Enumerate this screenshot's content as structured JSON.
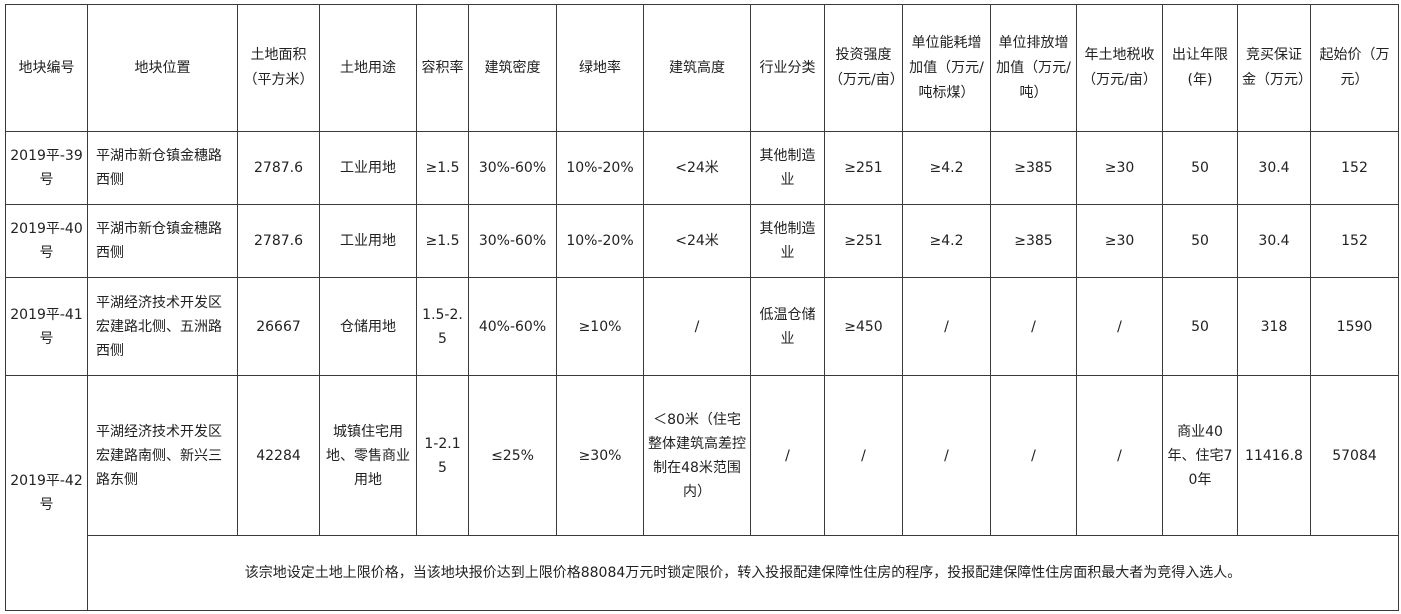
{
  "headers": [
    "地块编号",
    "地块位置",
    "土地面积（平方米）",
    "土地用途",
    "容积率",
    "建筑密度",
    "绿地率",
    "建筑高度",
    "行业分类",
    "投资强度（万元/亩）",
    "单位能耗增加值（万元/吨标煤）",
    "单位排放增加值（万元/吨）",
    "年土地税收（万元/亩）",
    "出让年限(年)",
    "竞买保证金（万元）",
    "起始价（万元）"
  ],
  "rows": [
    [
      "2019平-39号",
      "平湖市新仓镇金穗路西侧",
      "2787.6",
      "工业用地",
      "≥1.5",
      "30%-60%",
      "10%-20%",
      "<24米",
      "其他制造业",
      "≥251",
      "≥4.2",
      "≥385",
      "≥30",
      "50",
      "30.4",
      "152"
    ],
    [
      "2019平-40号",
      "平湖市新仓镇金穗路西侧",
      "2787.6",
      "工业用地",
      "≥1.5",
      "30%-60%",
      "10%-20%",
      "<24米",
      "其他制造业",
      "≥251",
      "≥4.2",
      "≥385",
      "≥30",
      "50",
      "30.4",
      "152"
    ],
    [
      "2019平-41号",
      "平湖经济技术开发区宏建路北侧、五洲路西侧",
      "26667",
      "仓储用地",
      "1.5-2.5",
      "40%-60%",
      "≥10%",
      "/",
      "低温仓储业",
      "≥450",
      "/",
      "/",
      "/",
      "50",
      "318",
      "1590"
    ],
    [
      "2019平-42号",
      "平湖经济技术开发区宏建路南侧、新兴三路东侧",
      "42284",
      "城镇住宅用地、零售商业用地",
      "1-2.15",
      "≤25%",
      "≥30%",
      "＜80米（住宅整体建筑高差控制在48米范围内）",
      "/",
      "/",
      "/",
      "/",
      "/",
      "商业40年、住宅70年",
      "11416.8",
      "57084"
    ]
  ],
  "note": "该宗地设定土地上限价格，当该地块报价达到上限价格88084万元时锁定限价，转入投报配建保障性住房的程序，投报配建保障性住房面积最大者为竞得入选人。"
}
